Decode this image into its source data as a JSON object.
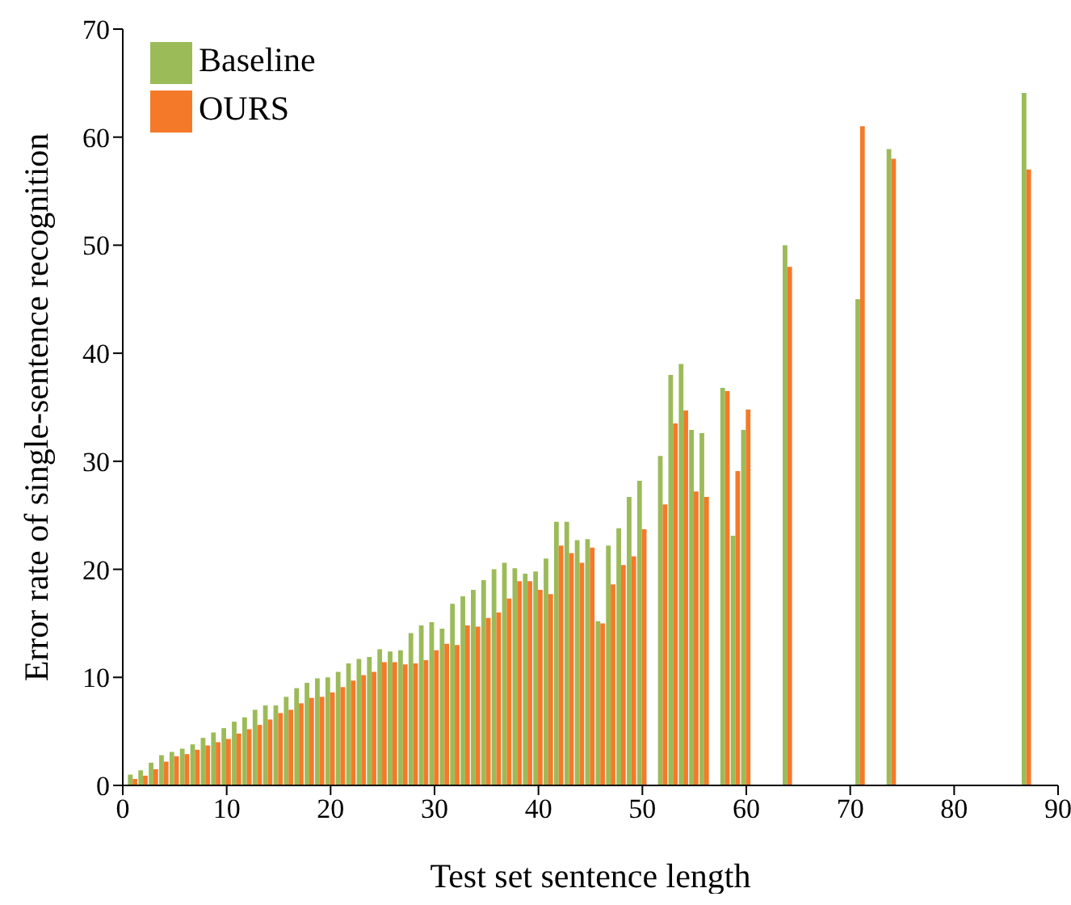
{
  "chart_data": {
    "type": "bar",
    "xlabel": "Test set sentence length",
    "ylabel": "Error rate of single-sentence recognition",
    "x": [
      1,
      2,
      3,
      4,
      5,
      6,
      7,
      8,
      9,
      10,
      11,
      12,
      13,
      14,
      15,
      16,
      17,
      18,
      19,
      20,
      21,
      22,
      23,
      24,
      25,
      26,
      27,
      28,
      29,
      30,
      31,
      32,
      33,
      34,
      35,
      36,
      37,
      38,
      39,
      40,
      41,
      42,
      43,
      44,
      45,
      46,
      47,
      48,
      49,
      50,
      52,
      53,
      54,
      55,
      56,
      58,
      59,
      60,
      64,
      71,
      74,
      87
    ],
    "series": [
      {
        "name": "Baseline",
        "color": "#9bbb59",
        "values": [
          1.0,
          1.4,
          2.1,
          2.8,
          3.1,
          3.4,
          3.8,
          4.4,
          4.9,
          5.3,
          5.9,
          6.3,
          7.0,
          7.4,
          7.4,
          8.2,
          9.0,
          9.5,
          9.9,
          10.0,
          10.5,
          11.3,
          11.7,
          11.9,
          12.6,
          12.4,
          12.5,
          14.1,
          14.8,
          15.1,
          14.5,
          16.8,
          17.5,
          18.1,
          19.0,
          20.0,
          20.6,
          20.1,
          19.6,
          19.8,
          21.0,
          24.4,
          24.4,
          22.7,
          22.8,
          15.2,
          22.2,
          23.8,
          26.7,
          28.2,
          30.5,
          38.0,
          39.0,
          32.9,
          32.6,
          36.8,
          23.1,
          32.9,
          50.0,
          45.0,
          58.9,
          64.1
        ]
      },
      {
        "name": "OURS",
        "color": "#f47a2a",
        "values": [
          0.6,
          0.9,
          1.5,
          2.2,
          2.7,
          2.9,
          3.3,
          3.7,
          4.0,
          4.3,
          4.8,
          5.2,
          5.6,
          6.1,
          6.7,
          7.0,
          7.6,
          8.1,
          8.2,
          8.6,
          9.1,
          9.7,
          10.2,
          10.5,
          11.4,
          11.4,
          11.2,
          11.3,
          11.6,
          12.5,
          13.1,
          13.0,
          14.8,
          14.7,
          15.5,
          16.0,
          17.3,
          18.9,
          18.9,
          18.1,
          17.7,
          22.2,
          21.5,
          20.6,
          22.0,
          15.0,
          18.6,
          20.4,
          21.2,
          23.7,
          26.0,
          33.5,
          34.7,
          27.2,
          26.7,
          36.5,
          29.1,
          34.8,
          48.0,
          61.0,
          58.0,
          57.0
        ]
      }
    ],
    "xlim": [
      0,
      90
    ],
    "xticks": [
      0,
      10,
      20,
      30,
      40,
      50,
      60,
      70,
      80,
      90
    ],
    "ylim": [
      0,
      70
    ],
    "yticks": [
      0,
      10,
      20,
      30,
      40,
      50,
      60,
      70
    ],
    "grid": false,
    "legend": "top left"
  }
}
